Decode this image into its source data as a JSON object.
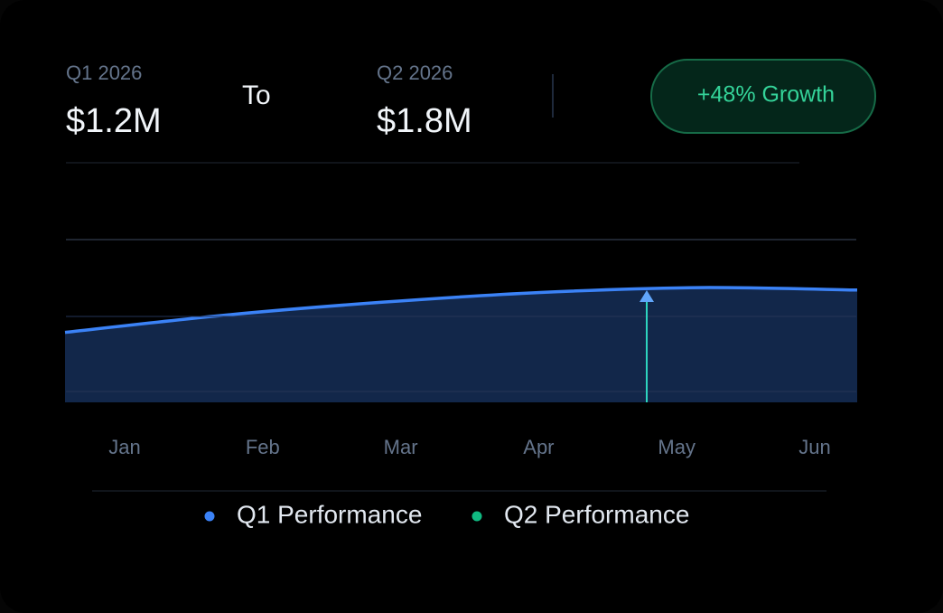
{
  "summary": {
    "from_label": "Q1 2026",
    "from_value": "$1.2M",
    "connector": "To",
    "to_label": "Q2 2026",
    "to_value": "$1.8M",
    "badge": "+48% Growth"
  },
  "chart_data": {
    "type": "area",
    "categories": [
      "Jan",
      "Feb",
      "Mar",
      "Apr",
      "May",
      "Jun"
    ],
    "series": [
      {
        "name": "Q1 Performance",
        "color": "#3b82f6",
        "values": [
          0.86,
          1.07,
          1.23,
          1.35,
          1.41,
          1.38
        ]
      },
      {
        "name": "Q2 Performance",
        "color": "#10b981",
        "values": [
          null,
          null,
          null,
          null,
          null,
          null
        ]
      }
    ],
    "ylim": [
      0,
      2
    ]
  }
}
